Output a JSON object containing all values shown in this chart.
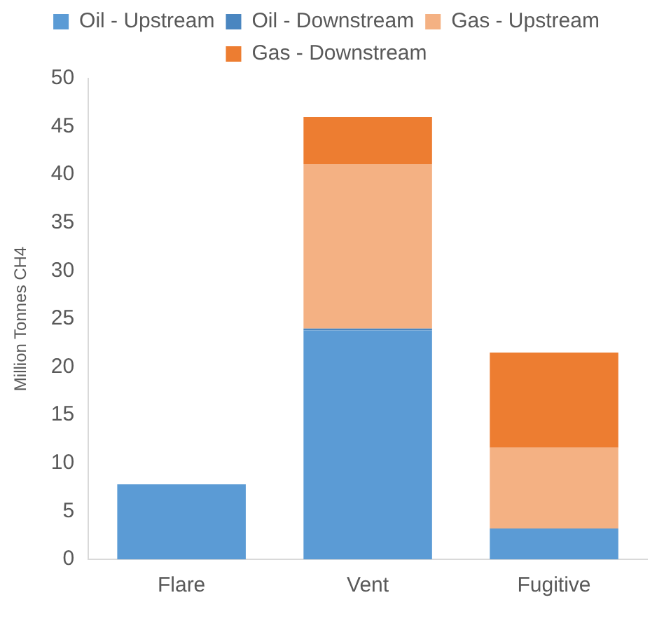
{
  "chart_data": {
    "type": "bar",
    "stacked": true,
    "ylabel": "Million Tonnes CH4",
    "categories": [
      "Flare",
      "Vent",
      "Fugitive"
    ],
    "series": [
      {
        "name": "Oil - Upstream",
        "color": "#5b9bd5",
        "values": [
          7.8,
          23.8,
          3.2
        ]
      },
      {
        "name": "Oil - Downstream",
        "color": "#4a86c0",
        "values": [
          0,
          0.2,
          0
        ]
      },
      {
        "name": "Gas - Upstream",
        "color": "#f4b183",
        "values": [
          0,
          17.1,
          8.4
        ]
      },
      {
        "name": "Gas - Downstream",
        "color": "#ed7d31",
        "values": [
          0,
          4.9,
          9.9
        ]
      }
    ],
    "ylim": [
      0,
      50
    ],
    "yticks": [
      0,
      5,
      10,
      15,
      20,
      25,
      30,
      35,
      40,
      45,
      50
    ],
    "grid": false,
    "legend": "top"
  }
}
